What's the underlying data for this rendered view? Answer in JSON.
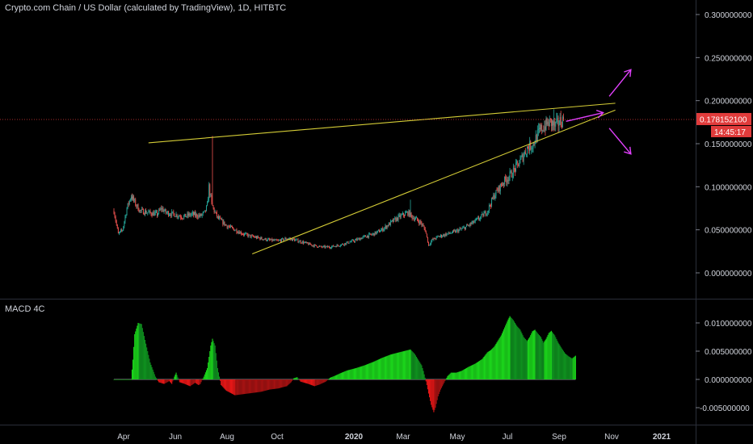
{
  "header": {
    "title": "Crypto.com Chain / US Dollar (calculated by TradingView), 1D, HITBTC"
  },
  "price_badge": {
    "value": "0.178152100",
    "countdown": "14:45:17"
  },
  "indicator": {
    "name": "MACD 4C"
  },
  "colors": {
    "background": "#000000",
    "up": "#26a69a",
    "down": "#ef5350",
    "trend": "#d4cc36",
    "arrow": "#e040fb",
    "macd_pos": "#1bd31b",
    "macd_neg": "#e31717",
    "text": "#d1d4dc",
    "badge": "#e03b3b"
  },
  "chart_data": [
    {
      "type": "candlestick",
      "y_axis_ticks": [
        "0.300000000",
        "0.250000000",
        "0.200000000",
        "0.150000000",
        "0.100000000",
        "0.050000000",
        "0.000000000"
      ],
      "ylim": [
        -0.03,
        0.32
      ],
      "x_axis_ticks": [
        "Apr",
        "Jun",
        "Aug",
        "Oct",
        "2020",
        "Mar",
        "May",
        "Jul",
        "Sep",
        "Nov",
        "2021"
      ],
      "price_path": [
        [
          0,
          0.072
        ],
        [
          5,
          0.045
        ],
        [
          10,
          0.05
        ],
        [
          15,
          0.075
        ],
        [
          20,
          0.09
        ],
        [
          25,
          0.08
        ],
        [
          30,
          0.072
        ],
        [
          40,
          0.07
        ],
        [
          50,
          0.068
        ],
        [
          55,
          0.075
        ],
        [
          60,
          0.07
        ],
        [
          70,
          0.068
        ],
        [
          80,
          0.065
        ],
        [
          90,
          0.068
        ],
        [
          100,
          0.066
        ],
        [
          105,
          0.07
        ],
        [
          108,
          0.078
        ],
        [
          110,
          0.1
        ],
        [
          113,
          0.08
        ],
        [
          116,
          0.072
        ],
        [
          120,
          0.064
        ],
        [
          130,
          0.055
        ],
        [
          140,
          0.05
        ],
        [
          150,
          0.045
        ],
        [
          160,
          0.042
        ],
        [
          170,
          0.04
        ],
        [
          180,
          0.038
        ],
        [
          190,
          0.037
        ],
        [
          200,
          0.04
        ],
        [
          210,
          0.038
        ],
        [
          220,
          0.035
        ],
        [
          230,
          0.032
        ],
        [
          240,
          0.03
        ],
        [
          250,
          0.03
        ],
        [
          260,
          0.032
        ],
        [
          270,
          0.035
        ],
        [
          280,
          0.038
        ],
        [
          290,
          0.042
        ],
        [
          300,
          0.045
        ],
        [
          310,
          0.05
        ],
        [
          320,
          0.058
        ],
        [
          330,
          0.065
        ],
        [
          340,
          0.07
        ],
        [
          345,
          0.065
        ],
        [
          350,
          0.062
        ],
        [
          355,
          0.058
        ],
        [
          360,
          0.05
        ],
        [
          364,
          0.032
        ],
        [
          368,
          0.038
        ],
        [
          375,
          0.042
        ],
        [
          385,
          0.045
        ],
        [
          395,
          0.048
        ],
        [
          405,
          0.052
        ],
        [
          415,
          0.058
        ],
        [
          425,
          0.065
        ],
        [
          432,
          0.072
        ],
        [
          440,
          0.09
        ],
        [
          450,
          0.105
        ],
        [
          460,
          0.115
        ],
        [
          470,
          0.13
        ],
        [
          478,
          0.145
        ],
        [
          485,
          0.15
        ],
        [
          490,
          0.16
        ],
        [
          495,
          0.168
        ],
        [
          500,
          0.172
        ],
        [
          505,
          0.175
        ],
        [
          510,
          0.17
        ],
        [
          515,
          0.175
        ],
        [
          520,
          0.178
        ]
      ],
      "spikes": [
        {
          "day": 114,
          "high": 0.159
        },
        {
          "day": 343,
          "high": 0.085
        },
        {
          "day": 509,
          "high": 0.19
        }
      ],
      "trendlines": [
        {
          "from": [
            40,
            0.151
          ],
          "to": [
            580,
            0.197
          ]
        },
        {
          "from": [
            160,
            0.022
          ],
          "to": [
            580,
            0.189
          ]
        }
      ],
      "arrows": [
        {
          "from": [
            523,
            0.176
          ],
          "to": [
            566,
            0.186
          ]
        },
        {
          "from": [
            573,
            0.205
          ],
          "to": [
            598,
            0.236
          ]
        },
        {
          "from": [
            573,
            0.168
          ],
          "to": [
            598,
            0.138
          ]
        }
      ],
      "current_price": 0.1781521
    },
    {
      "type": "histogram",
      "name": "MACD 4C",
      "y_axis_ticks": [
        "0.010000000",
        "0.005000000",
        "0.000000000",
        "-0.005000000"
      ],
      "ylim": [
        -0.0068,
        0.0128
      ],
      "macd_path": [
        [
          0,
          0
        ],
        [
          20,
          0
        ],
        [
          22,
          0.0035
        ],
        [
          24,
          0.008
        ],
        [
          28,
          0.01
        ],
        [
          32,
          0.0098
        ],
        [
          36,
          0.007
        ],
        [
          42,
          0.003
        ],
        [
          48,
          0.0005
        ],
        [
          52,
          -0.0005
        ],
        [
          58,
          -0.0008
        ],
        [
          64,
          -0.0003
        ],
        [
          67,
          -0.0008
        ],
        [
          70,
          0.0005
        ],
        [
          72,
          0.0012
        ],
        [
          76,
          -0.0005
        ],
        [
          82,
          -0.0008
        ],
        [
          88,
          -0.0012
        ],
        [
          94,
          -0.0006
        ],
        [
          98,
          -0.001
        ],
        [
          100,
          -0.0008
        ],
        [
          104,
          0.0005
        ],
        [
          108,
          0.002
        ],
        [
          112,
          0.006
        ],
        [
          114,
          0.0072
        ],
        [
          117,
          0.006
        ],
        [
          120,
          0.002
        ],
        [
          124,
          -0.001
        ],
        [
          130,
          -0.002
        ],
        [
          140,
          -0.0028
        ],
        [
          150,
          -0.0026
        ],
        [
          160,
          -0.0024
        ],
        [
          170,
          -0.0022
        ],
        [
          180,
          -0.0018
        ],
        [
          190,
          -0.0016
        ],
        [
          200,
          -0.0012
        ],
        [
          205,
          -0.0005
        ],
        [
          208,
          0.0002
        ],
        [
          212,
          0.0004
        ],
        [
          216,
          -0.0004
        ],
        [
          225,
          -0.0008
        ],
        [
          232,
          -0.0012
        ],
        [
          238,
          -0.0009
        ],
        [
          245,
          -0.0004
        ],
        [
          250,
          0.0003
        ],
        [
          255,
          0.0006
        ],
        [
          262,
          0.0011
        ],
        [
          270,
          0.0016
        ],
        [
          280,
          0.002
        ],
        [
          290,
          0.0025
        ],
        [
          300,
          0.0031
        ],
        [
          310,
          0.0038
        ],
        [
          320,
          0.0044
        ],
        [
          330,
          0.0048
        ],
        [
          338,
          0.0051
        ],
        [
          343,
          0.0053
        ],
        [
          348,
          0.0045
        ],
        [
          352,
          0.0035
        ],
        [
          356,
          0.0025
        ],
        [
          358,
          0.0015
        ],
        [
          360,
          0.0003
        ],
        [
          362,
          -0.001
        ],
        [
          364,
          -0.0025
        ],
        [
          367,
          -0.0045
        ],
        [
          370,
          -0.0058
        ],
        [
          372,
          -0.005
        ],
        [
          375,
          -0.003
        ],
        [
          378,
          -0.0018
        ],
        [
          382,
          -0.0006
        ],
        [
          386,
          0.0006
        ],
        [
          390,
          0.0012
        ],
        [
          396,
          0.0012
        ],
        [
          402,
          0.0015
        ],
        [
          410,
          0.0022
        ],
        [
          418,
          0.0028
        ],
        [
          426,
          0.0036
        ],
        [
          432,
          0.0048
        ],
        [
          436,
          0.0052
        ],
        [
          440,
          0.0058
        ],
        [
          444,
          0.0068
        ],
        [
          448,
          0.0078
        ],
        [
          452,
          0.0092
        ],
        [
          456,
          0.0106
        ],
        [
          458,
          0.0112
        ],
        [
          462,
          0.0105
        ],
        [
          466,
          0.0095
        ],
        [
          470,
          0.0088
        ],
        [
          474,
          0.0075
        ],
        [
          478,
          0.0068
        ],
        [
          481,
          0.0075
        ],
        [
          484,
          0.0085
        ],
        [
          487,
          0.0088
        ],
        [
          490,
          0.0082
        ],
        [
          494,
          0.0075
        ],
        [
          497,
          0.0065
        ],
        [
          500,
          0.0072
        ],
        [
          503,
          0.0082
        ],
        [
          506,
          0.0086
        ],
        [
          510,
          0.0078
        ],
        [
          514,
          0.0065
        ],
        [
          518,
          0.0055
        ],
        [
          522,
          0.0046
        ],
        [
          526,
          0.0041
        ],
        [
          530,
          0.0037
        ],
        [
          534,
          0.0042
        ]
      ]
    }
  ]
}
